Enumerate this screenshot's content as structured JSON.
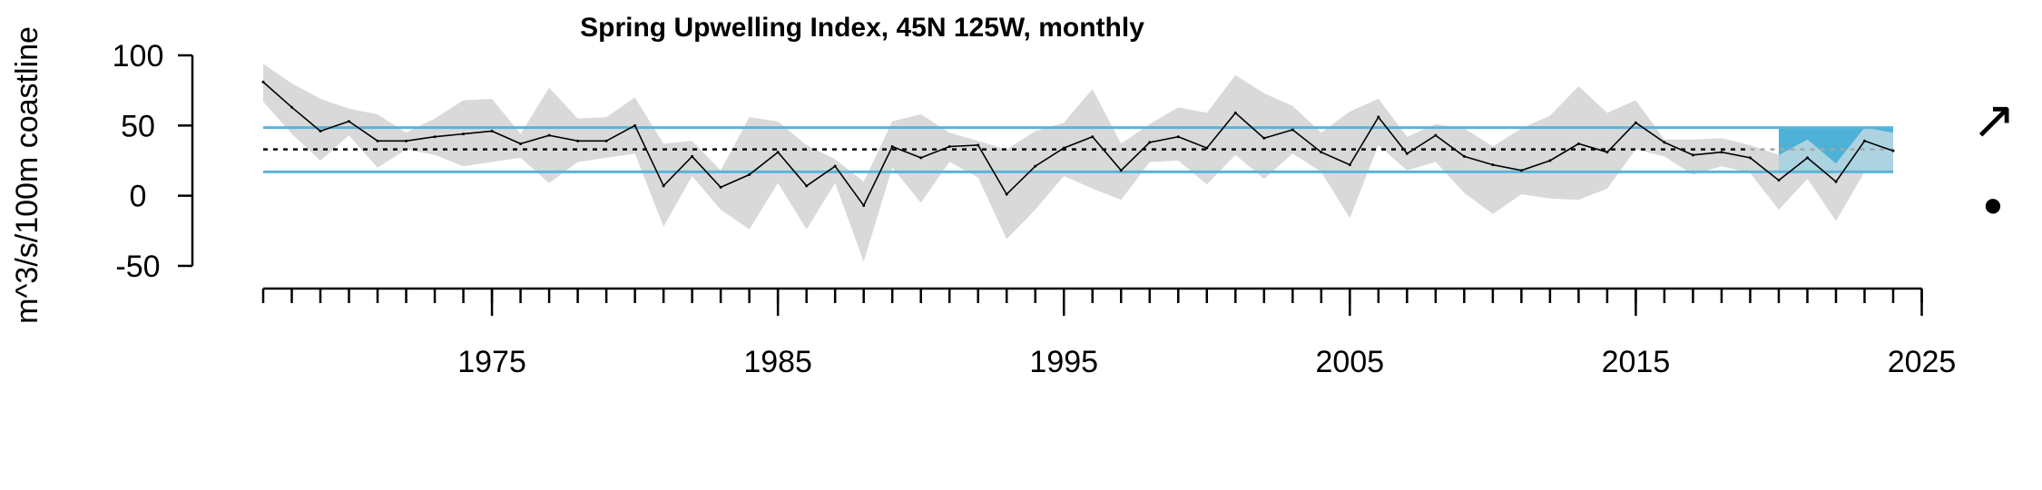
{
  "chart_data": {
    "type": "line",
    "title": "Spring Upwelling Index, 45N 125W, monthly",
    "ylabel": "m^3/s/100m coastline",
    "xlabel": "",
    "x_range": [
      1967,
      2024
    ],
    "ylim": [
      -50,
      100
    ],
    "y_ticks": [
      "100",
      "50",
      "0",
      "-50"
    ],
    "y_tick_values": [
      100,
      50,
      0,
      -50
    ],
    "x_ticks": [
      "1975",
      "1985",
      "1995",
      "2005",
      "2015",
      "2025"
    ],
    "x_tick_values": [
      1975,
      1985,
      1995,
      2005,
      2015,
      2025
    ],
    "reference_lines": {
      "mean": 33,
      "upper_sd": 48.5,
      "lower_sd": 17
    },
    "recent_window": [
      2020,
      2024
    ],
    "trend_symbol": "↗",
    "mean_symbol": "●",
    "series": [
      {
        "x": [
          1967,
          1968,
          1969,
          1970,
          1971,
          1972,
          1973,
          1974,
          1975,
          1976,
          1977,
          1978,
          1979,
          1980,
          1981,
          1982,
          1983,
          1984,
          1985,
          1986,
          1987,
          1988,
          1989,
          1990,
          1991,
          1992,
          1993,
          1994,
          1995,
          1996,
          1997,
          1998,
          1999,
          2000,
          2001,
          2002,
          2003,
          2004,
          2005,
          2006,
          2007,
          2008,
          2009,
          2010,
          2011,
          2012,
          2013,
          2014,
          2015,
          2016,
          2017,
          2018,
          2019,
          2020,
          2021,
          2022,
          2023,
          2024
        ],
        "values": [
          81,
          63,
          46,
          53,
          39,
          39,
          42,
          44,
          46,
          37,
          43,
          39,
          39,
          50,
          7,
          28,
          6,
          15,
          31,
          7,
          21,
          -7,
          35,
          27,
          35,
          36,
          1,
          21,
          34,
          42,
          18,
          38,
          42,
          34,
          59,
          41,
          47,
          31,
          22,
          56,
          30,
          43,
          28,
          22,
          18,
          25,
          37,
          31,
          52,
          38,
          29,
          31,
          27,
          11,
          27,
          10,
          39,
          32
        ],
        "band_low": [
          67,
          44,
          25,
          43,
          20,
          33,
          29,
          21,
          24,
          27,
          9,
          24,
          27,
          30,
          -22,
          14,
          -10,
          -24,
          9,
          -24,
          9,
          -47,
          20,
          -5,
          24,
          13,
          -31,
          -10,
          14,
          5,
          -3,
          24,
          25,
          8,
          29,
          12,
          30,
          17,
          -16,
          36,
          18,
          24,
          2,
          -13,
          1,
          -2,
          -3,
          5,
          33,
          28,
          15,
          21,
          16,
          -10,
          12,
          -18,
          17,
          18
        ],
        "band_high": [
          94,
          80,
          69,
          62,
          58,
          45,
          55,
          68,
          69,
          44,
          77,
          55,
          56,
          70,
          37,
          39,
          18,
          56,
          53,
          36,
          26,
          10,
          53,
          58,
          45,
          39,
          33,
          46,
          52,
          76,
          37,
          51,
          63,
          59,
          86,
          73,
          64,
          45,
          60,
          69,
          42,
          51,
          48,
          35,
          48,
          57,
          78,
          59,
          68,
          40,
          40,
          41,
          36,
          29,
          40,
          23,
          49,
          45
        ]
      }
    ],
    "colors": {
      "series": "#000000",
      "band": "#d9d9d9",
      "sd_lines": "#5ab4d9",
      "recent_fill": "#4db1d8",
      "recent_overlay": "#add3e0",
      "mean_line": "#000000",
      "mean_line_gray": "#a6a6a6"
    }
  }
}
